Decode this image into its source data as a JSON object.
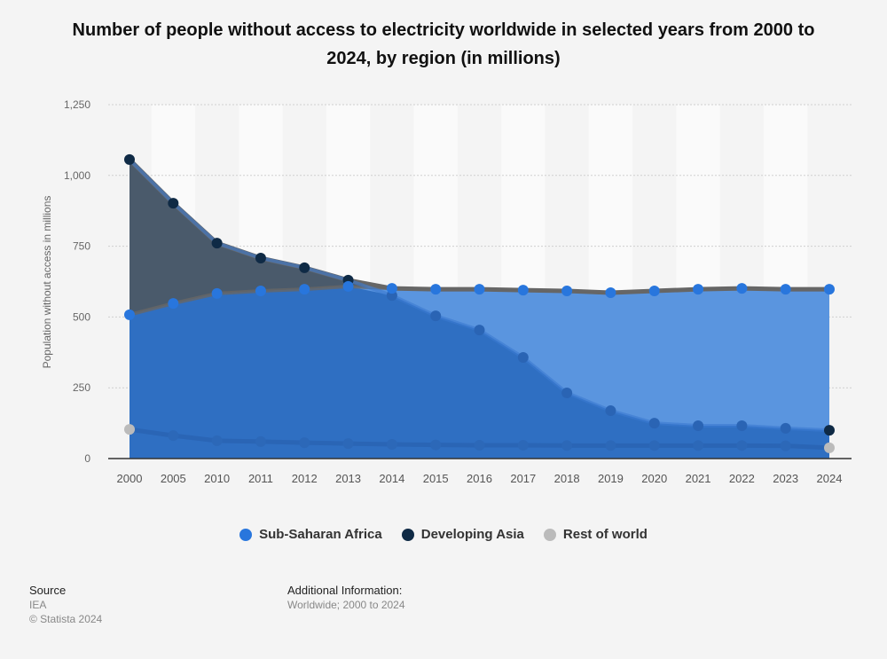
{
  "chart_data": {
    "type": "area",
    "title": "Number of people without access to electricity worldwide in selected years from 2000 to 2024, by region (in millions)",
    "xlabel": "",
    "ylabel": "Population without access in millions",
    "ylim": [
      0,
      1250
    ],
    "yticks": [
      "0",
      "250",
      "500",
      "750",
      "1,000",
      "1,250"
    ],
    "ytick_values": [
      0,
      250,
      500,
      750,
      1000,
      1250
    ],
    "categories": [
      "2000",
      "2005",
      "2010",
      "2011",
      "2012",
      "2013",
      "2014",
      "2015",
      "2016",
      "2017",
      "2018",
      "2019",
      "2020",
      "2021",
      "2022",
      "2023",
      "2024"
    ],
    "series": [
      {
        "name": "Sub-Saharan Africa",
        "color": "#2876dd",
        "values": [
          508,
          548,
          583,
          592,
          598,
          608,
          601,
          598,
          598,
          595,
          592,
          586,
          592,
          598,
          601,
          598,
          598
        ]
      },
      {
        "name": "Developing Asia",
        "color": "#0f2a45",
        "values": [
          1056,
          902,
          761,
          708,
          674,
          630,
          576,
          504,
          454,
          357,
          232,
          169,
          125,
          116,
          116,
          107,
          100
        ]
      },
      {
        "name": "Rest of world",
        "color": "#bbbbbb",
        "values": [
          103,
          81,
          63,
          60,
          56,
          53,
          50,
          48,
          47,
          47,
          46,
          46,
          46,
          46,
          46,
          45,
          38
        ]
      }
    ],
    "grid": true,
    "legend_position": "bottom"
  },
  "footer": {
    "source_label": "Source",
    "source": "IEA",
    "copyright": "© Statista 2024",
    "info_label": "Additional Information:",
    "info": "Worldwide; 2000 to 2024"
  }
}
